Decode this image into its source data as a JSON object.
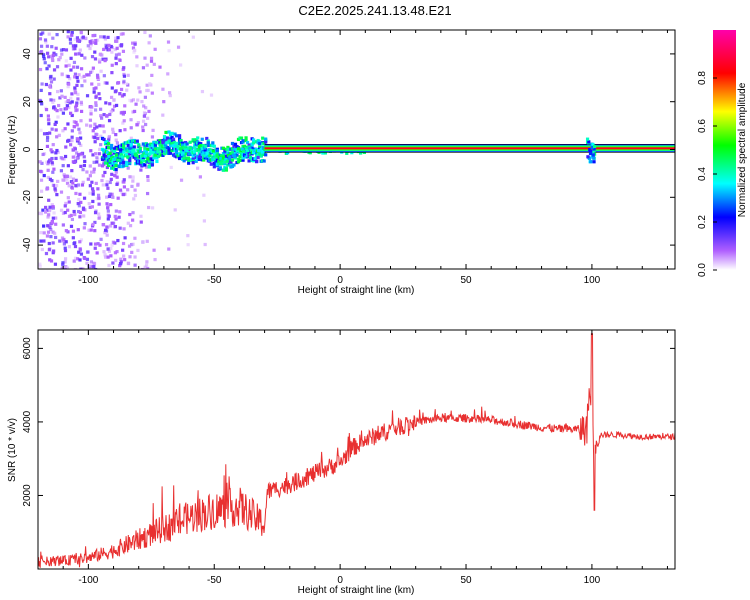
{
  "title": "C2E2.2025.241.13.48.E21",
  "chart_data": [
    {
      "type": "heatmap",
      "name": "spectrogram",
      "xlabel": "Height of straight line (km)",
      "ylabel": "Frequency (Hz)",
      "xlim": [
        -120,
        133
      ],
      "ylim": [
        -50,
        50
      ],
      "xticks": [
        -100,
        -50,
        0,
        50,
        100
      ],
      "yticks": [
        -40,
        -20,
        0,
        20,
        40
      ],
      "description_points": {
        "noise_region_x": [
          -120,
          -75
        ],
        "signal_band_x": [
          -95,
          -30
        ],
        "steady_line_x": [
          -30,
          133
        ],
        "line_frequency_hz": 0.5
      },
      "colorbar": {
        "label": "Normalized spectral amplitude",
        "ticks": [
          0.0,
          0.2,
          0.4,
          0.6,
          0.8
        ],
        "range": [
          0,
          1
        ],
        "colors": [
          "#ffffff",
          "#8800ff",
          "#0000ff",
          "#00ffff",
          "#00ff00",
          "#ffff00",
          "#ff0000",
          "#ff00aa"
        ]
      }
    },
    {
      "type": "line",
      "name": "snr",
      "xlabel": "Height of straight line (km)",
      "ylabel": "SNR (10 * v/v)",
      "xlim": [
        -120,
        133
      ],
      "ylim": [
        0,
        6500
      ],
      "xticks": [
        -100,
        -50,
        0,
        50,
        100
      ],
      "yticks": [
        2000,
        4000,
        6000
      ],
      "color": "#e83030",
      "envelope": {
        "x": [
          -120,
          -110,
          -100,
          -90,
          -80,
          -70,
          -60,
          -50,
          -40,
          -30,
          -29,
          -20,
          -10,
          0,
          5,
          10,
          20,
          30,
          40,
          50,
          60,
          70,
          80,
          90,
          98,
          99,
          100,
          101,
          102,
          110,
          120,
          133
        ],
        "y": [
          200,
          220,
          300,
          500,
          800,
          1100,
          1400,
          1600,
          1700,
          1200,
          2100,
          2300,
          2600,
          2900,
          3300,
          3500,
          3800,
          4000,
          4100,
          4100,
          4050,
          3950,
          3850,
          3800,
          3800,
          5000,
          3200,
          3400,
          3650,
          3650,
          3600,
          3600
        ]
      },
      "spikes": [
        {
          "x": 100,
          "y": 6400
        },
        {
          "x": 101,
          "y": 1600
        },
        {
          "x": -25,
          "y": 2100
        }
      ]
    }
  ]
}
